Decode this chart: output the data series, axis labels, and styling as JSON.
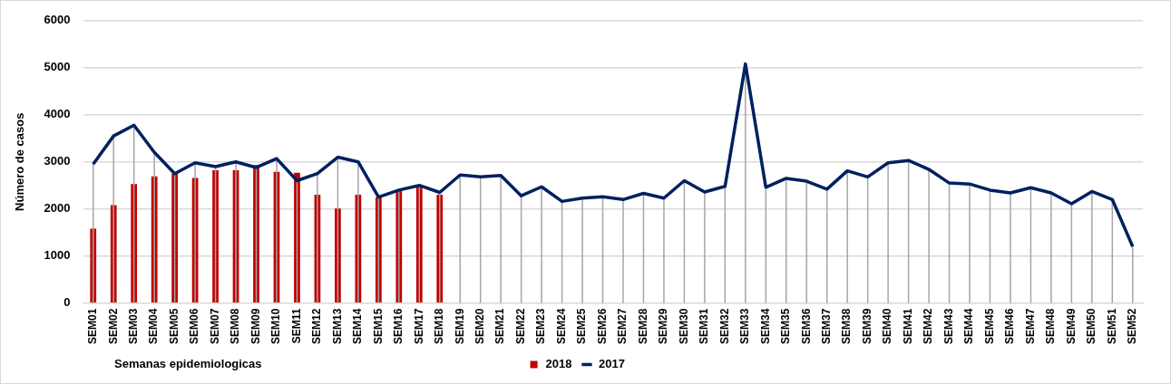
{
  "chart_data": {
    "type": "bar",
    "xlabel": "Semanas epidemiologicas",
    "ylabel": "Número de casos",
    "categories": [
      "SEM01",
      "SEM02",
      "SEM03",
      "SEM04",
      "SEM05",
      "SEM06",
      "SEM07",
      "SEM08",
      "SEM09",
      "SEM10",
      "SEM11",
      "SEM12",
      "SEM13",
      "SEM14",
      "SEM15",
      "SEM16",
      "SEM17",
      "SEM18",
      "SEM19",
      "SEM20",
      "SEM21",
      "SEM22",
      "SEM23",
      "SEM24",
      "SEM25",
      "SEM26",
      "SEM27",
      "SEM28",
      "SEM29",
      "SEM30",
      "SEM31",
      "SEM32",
      "SEM33",
      "SEM34",
      "SEM35",
      "SEM36",
      "SEM37",
      "SEM38",
      "SEM39",
      "SEM40",
      "SEM41",
      "SEM42",
      "SEM43",
      "SEM44",
      "SEM45",
      "SEM46",
      "SEM47",
      "SEM48",
      "SEM49",
      "SEM50",
      "SEM51",
      "SEM52"
    ],
    "series": [
      {
        "name": "2018",
        "color": "#c00000",
        "values": [
          1580,
          2080,
          2530,
          2690,
          2750,
          2660,
          2820,
          2820,
          2930,
          2790,
          2770,
          2300,
          2010,
          2300,
          2250,
          2400,
          2500,
          2300,
          null,
          null,
          null,
          null,
          null,
          null,
          null,
          null,
          null,
          null,
          null,
          null,
          null,
          null,
          null,
          null,
          null,
          null,
          null,
          null,
          null,
          null,
          null,
          null,
          null,
          null,
          null,
          null,
          null,
          null,
          null,
          null,
          null,
          null
        ]
      },
      {
        "name": "2017",
        "type": "line",
        "color": "#002060",
        "values": [
          2950,
          3550,
          3780,
          3200,
          2750,
          2980,
          2900,
          3000,
          2880,
          3070,
          2600,
          2750,
          3100,
          3000,
          2250,
          2400,
          2500,
          2350,
          2720,
          2680,
          2710,
          2280,
          2470,
          2160,
          2230,
          2260,
          2200,
          2330,
          2230,
          2600,
          2360,
          2480,
          5080,
          2460,
          2650,
          2590,
          2420,
          2810,
          2680,
          2980,
          3030,
          2840,
          2550,
          2530,
          2400,
          2340,
          2450,
          2340,
          2110,
          2370,
          2200,
          1200
        ],
        "errors": [
          [
            2950,
            0
          ],
          [
            3550,
            0
          ],
          [
            3780,
            0
          ],
          [
            3200,
            0
          ],
          [
            2750,
            0
          ],
          [
            2980,
            0
          ],
          [
            2900,
            0
          ],
          [
            3000,
            0
          ],
          [
            2880,
            0
          ],
          [
            3070,
            0
          ],
          [
            2600,
            0
          ],
          [
            2750,
            0
          ],
          [
            3100,
            0
          ],
          [
            3000,
            0
          ],
          [
            2250,
            0
          ],
          [
            2400,
            0
          ],
          [
            2500,
            0
          ],
          [
            2350,
            0
          ],
          [
            2720,
            0
          ],
          [
            2680,
            0
          ],
          [
            2710,
            0
          ],
          [
            2280,
            0
          ],
          [
            2470,
            0
          ],
          [
            2160,
            0
          ],
          [
            2230,
            0
          ],
          [
            2260,
            0
          ],
          [
            2200,
            0
          ],
          [
            2330,
            0
          ],
          [
            2230,
            0
          ],
          [
            2600,
            0
          ],
          [
            2360,
            0
          ],
          [
            2480,
            0
          ],
          [
            5080,
            0
          ],
          [
            2460,
            0
          ],
          [
            2650,
            0
          ],
          [
            2590,
            0
          ],
          [
            2420,
            0
          ],
          [
            2810,
            0
          ],
          [
            2680,
            0
          ],
          [
            2980,
            0
          ],
          [
            3030,
            0
          ],
          [
            2840,
            0
          ],
          [
            2550,
            0
          ],
          [
            2530,
            0
          ],
          [
            2400,
            0
          ],
          [
            2340,
            0
          ],
          [
            2450,
            0
          ],
          [
            2340,
            0
          ],
          [
            2110,
            0
          ],
          [
            2370,
            0
          ],
          [
            2200,
            0
          ],
          [
            1200,
            0
          ]
        ]
      }
    ],
    "ylim": [
      0,
      6000
    ],
    "yticks": [
      0,
      1000,
      2000,
      3000,
      4000,
      5000,
      6000
    ],
    "grid": "y",
    "legend": "bottom",
    "marker": "none",
    "line_style": "solid"
  }
}
